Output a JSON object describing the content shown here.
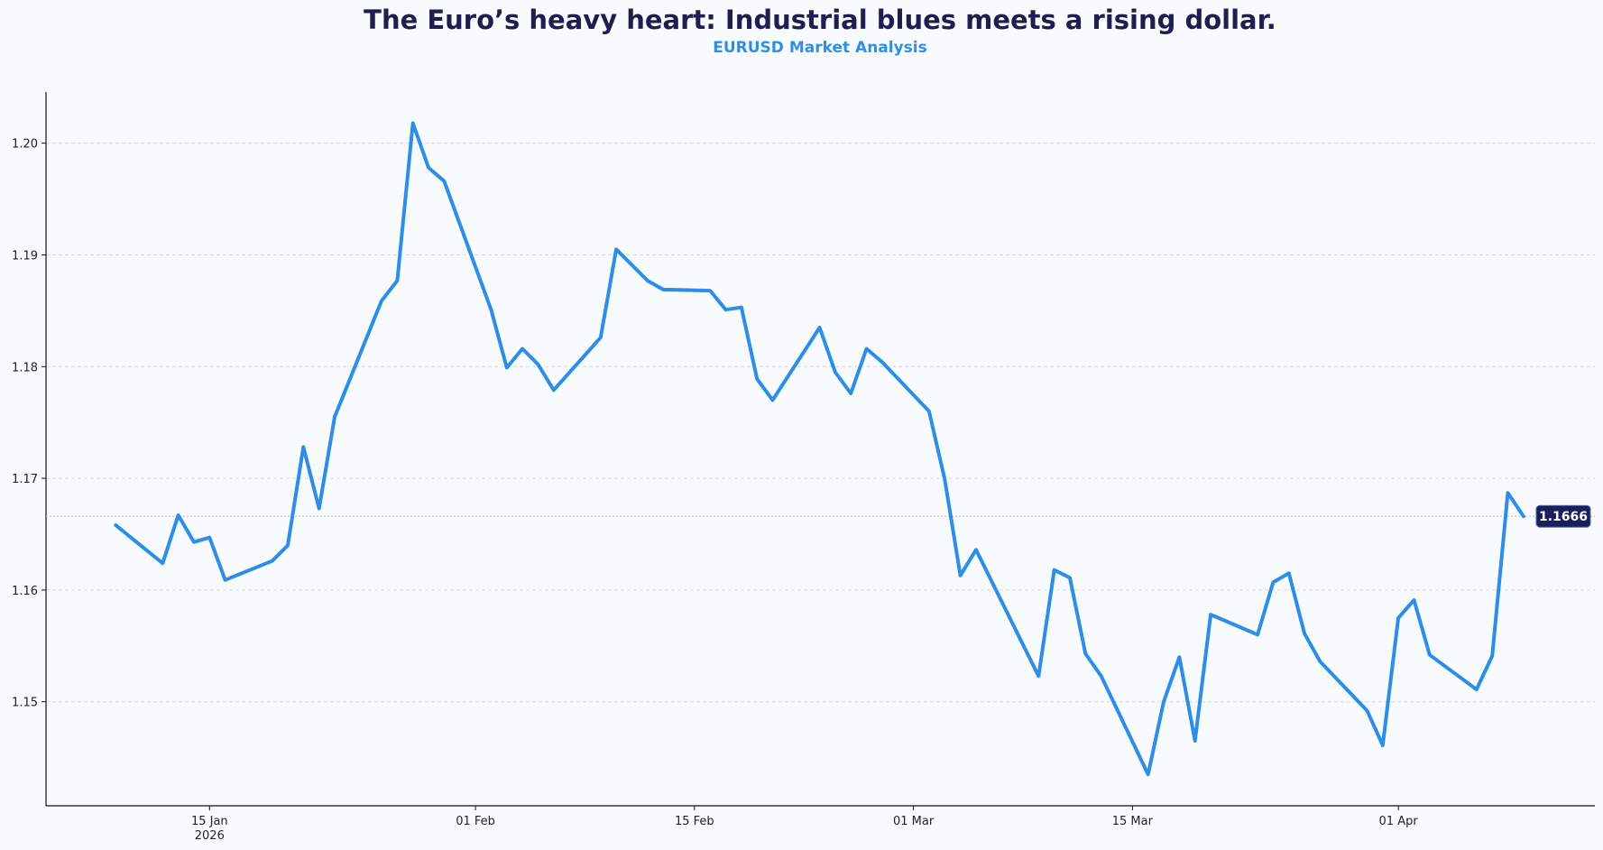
{
  "chart_data": {
    "type": "line",
    "title": "The Euro’s heavy heart: Industrial blues meets a rising dollar.",
    "subtitle": "EURUSD Market Analysis",
    "xlabel": "",
    "ylabel": "",
    "ylim": [
      1.1405,
      1.2045
    ],
    "xlim": [
      "2026-01-05",
      "2026-04-14"
    ],
    "grid": "horizontal dashed",
    "line_color": "#2e8de6",
    "title_color": "#1e1f4e",
    "subtitle_color": "#2f8fe8",
    "last_value_label": "1.1666",
    "last_value_label_color": "#1a1f5c",
    "y_ticks": [
      1.15,
      1.16,
      1.17,
      1.18,
      1.19,
      1.2
    ],
    "y_tick_labels": [
      "1.15",
      "1.16",
      "1.17",
      "1.18",
      "1.19",
      "1.20"
    ],
    "x_ticks": [
      {
        "date": "2026-01-15",
        "label": "15 Jan",
        "sublabel": "2026"
      },
      {
        "date": "2026-02-01",
        "label": "01 Feb",
        "sublabel": ""
      },
      {
        "date": "2026-02-15",
        "label": "15 Feb",
        "sublabel": ""
      },
      {
        "date": "2026-03-01",
        "label": "01 Mar",
        "sublabel": ""
      },
      {
        "date": "2026-03-15",
        "label": "15 Mar",
        "sublabel": ""
      },
      {
        "date": "2026-04-01",
        "label": "01 Apr",
        "sublabel": ""
      }
    ],
    "x": [
      "2026-01-09",
      "2026-01-12",
      "2026-01-13",
      "2026-01-14",
      "2026-01-15",
      "2026-01-16",
      "2026-01-19",
      "2026-01-20",
      "2026-01-21",
      "2026-01-22",
      "2026-01-23",
      "2026-01-26",
      "2026-01-27",
      "2026-01-28",
      "2026-01-29",
      "2026-01-30",
      "2026-02-02",
      "2026-02-03",
      "2026-02-04",
      "2026-02-05",
      "2026-02-06",
      "2026-02-09",
      "2026-02-10",
      "2026-02-12",
      "2026-02-13",
      "2026-02-16",
      "2026-02-17",
      "2026-02-18",
      "2026-02-19",
      "2026-02-20",
      "2026-02-23",
      "2026-02-24",
      "2026-02-25",
      "2026-02-26",
      "2026-02-27",
      "2026-03-02",
      "2026-03-03",
      "2026-03-04",
      "2026-03-05",
      "2026-03-09",
      "2026-03-10",
      "2026-03-11",
      "2026-03-12",
      "2026-03-13",
      "2026-03-16",
      "2026-03-17",
      "2026-03-18",
      "2026-03-19",
      "2026-03-20",
      "2026-03-23",
      "2026-03-24",
      "2026-03-25",
      "2026-03-26",
      "2026-03-27",
      "2026-03-30",
      "2026-03-31",
      "2026-04-01",
      "2026-04-02",
      "2026-04-03",
      "2026-04-06",
      "2026-04-07",
      "2026-04-08",
      "2026-04-09"
    ],
    "y": [
      1.1658,
      1.1624,
      1.1667,
      1.1643,
      1.1647,
      1.1609,
      1.1626,
      1.164,
      1.1728,
      1.1673,
      1.1755,
      1.1859,
      1.1877,
      1.2018,
      1.1978,
      1.1966,
      1.1851,
      1.1799,
      1.1816,
      1.1802,
      1.1779,
      1.1826,
      1.1905,
      1.1877,
      1.1869,
      1.1868,
      1.1851,
      1.1853,
      1.1789,
      1.177,
      1.1835,
      1.1795,
      1.1776,
      1.1816,
      1.1804,
      1.176,
      1.1699,
      1.1613,
      1.1636,
      1.1523,
      1.1618,
      1.1611,
      1.1543,
      1.1523,
      1.1435,
      1.15,
      1.154,
      1.1465,
      1.1578,
      1.156,
      1.1607,
      1.1615,
      1.1561,
      1.1536,
      1.1492,
      1.1461,
      1.1575,
      1.1591,
      1.1542,
      1.1511,
      1.1541,
      1.1687,
      1.1666
    ]
  }
}
